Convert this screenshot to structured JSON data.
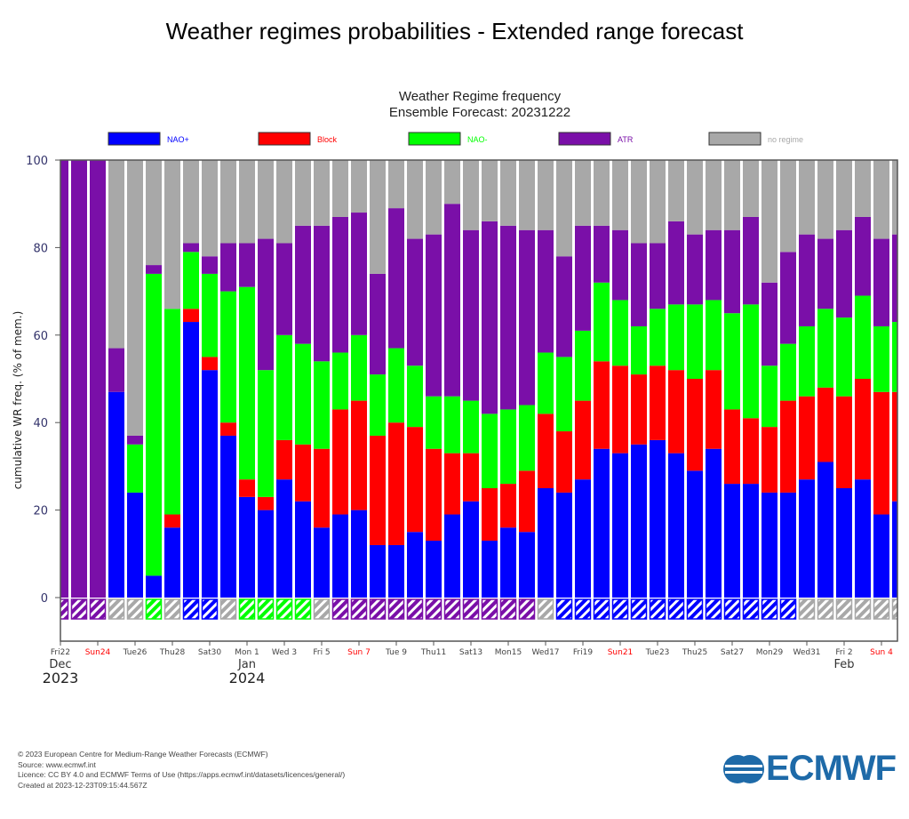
{
  "page_title": "Weather regimes probabilities - Extended range forecast",
  "footer": {
    "lines": [
      "© 2023 European Centre for Medium-Range Weather Forecasts (ECMWF)",
      "Source: www.ecmwf.int",
      "Licence: CC BY 4.0 and ECMWF Terms of Use (https://apps.ecmwf.int/datasets/licences/general/)",
      "Created at 2023-12-23T09:15:44.567Z"
    ],
    "logo_text": "ECMWF"
  },
  "chart_data": {
    "type": "bar",
    "stacked": true,
    "title": "Weather Regime frequency",
    "subtitle": "Ensemble Forecast: 20231222",
    "ylabel": "cumulative WR freq. (% of mem.)",
    "xlabel": "",
    "ylim": [
      -10,
      100
    ],
    "yticks": [
      0,
      20,
      40,
      60,
      80,
      100
    ],
    "grid": false,
    "legend_position": "top",
    "categories": [
      "2023-12-22",
      "2023-12-23",
      "2023-12-24",
      "2023-12-25",
      "2023-12-26",
      "2023-12-27",
      "2023-12-28",
      "2023-12-29",
      "2023-12-30",
      "2023-12-31",
      "2024-01-01",
      "2024-01-02",
      "2024-01-03",
      "2024-01-04",
      "2024-01-05",
      "2024-01-06",
      "2024-01-07",
      "2024-01-08",
      "2024-01-09",
      "2024-01-10",
      "2024-01-11",
      "2024-01-12",
      "2024-01-13",
      "2024-01-14",
      "2024-01-15",
      "2024-01-16",
      "2024-01-17",
      "2024-01-18",
      "2024-01-19",
      "2024-01-20",
      "2024-01-21",
      "2024-01-22",
      "2024-01-23",
      "2024-01-24",
      "2024-01-25",
      "2024-01-26",
      "2024-01-27",
      "2024-01-28",
      "2024-01-29",
      "2024-01-30",
      "2024-01-31",
      "2024-02-01",
      "2024-02-02",
      "2024-02-03",
      "2024-02-04",
      "2024-02-05"
    ],
    "series": [
      {
        "name": "NAO+",
        "color": "#0000ff",
        "values": [
          0,
          0,
          0,
          47,
          24,
          5,
          16,
          63,
          52,
          37,
          23,
          20,
          27,
          22,
          16,
          19,
          20,
          12,
          12,
          15,
          13,
          19,
          22,
          13,
          16,
          15,
          25,
          24,
          27,
          34,
          33,
          35,
          36,
          33,
          29,
          34,
          26,
          26,
          24,
          24,
          27,
          31,
          25,
          27,
          19,
          22
        ]
      },
      {
        "name": "Block",
        "color": "#ff0000",
        "values": [
          0,
          0,
          0,
          0,
          0,
          0,
          3,
          3,
          3,
          3,
          4,
          3,
          9,
          13,
          18,
          24,
          25,
          25,
          28,
          24,
          21,
          14,
          11,
          12,
          10,
          14,
          17,
          14,
          18,
          20,
          20,
          16,
          17,
          19,
          21,
          18,
          17,
          15,
          15,
          21,
          19,
          17,
          21,
          23,
          28,
          25
        ]
      },
      {
        "name": "NAO-",
        "color": "#00ff00",
        "values": [
          0,
          0,
          0,
          0,
          11,
          69,
          47,
          13,
          19,
          30,
          44,
          29,
          24,
          23,
          20,
          13,
          15,
          14,
          17,
          14,
          12,
          13,
          12,
          17,
          17,
          15,
          14,
          17,
          16,
          18,
          15,
          11,
          13,
          15,
          17,
          16,
          22,
          26,
          14,
          13,
          16,
          18,
          18,
          19,
          15,
          16
        ]
      },
      {
        "name": "ATR",
        "color": "#7a0fa8",
        "values": [
          100,
          100,
          100,
          10,
          2,
          2,
          0,
          2,
          4,
          11,
          10,
          30,
          21,
          27,
          31,
          31,
          28,
          23,
          32,
          29,
          37,
          44,
          39,
          44,
          42,
          40,
          28,
          23,
          24,
          13,
          16,
          19,
          15,
          19,
          16,
          16,
          19,
          20,
          19,
          21,
          21,
          16,
          20,
          18,
          20,
          20
        ]
      },
      {
        "name": "no regime",
        "color": "#a8a8a8",
        "values": [
          0,
          0,
          0,
          43,
          63,
          24,
          34,
          19,
          22,
          19,
          19,
          18,
          19,
          15,
          15,
          13,
          12,
          26,
          11,
          18,
          17,
          10,
          16,
          14,
          15,
          16,
          16,
          22,
          15,
          15,
          16,
          19,
          19,
          14,
          17,
          16,
          16,
          13,
          28,
          21,
          17,
          18,
          16,
          13,
          18,
          17
        ]
      }
    ],
    "dominant_regime": [
      "ATR",
      "ATR",
      "ATR",
      "no regime",
      "no regime",
      "NAO-",
      "no regime",
      "NAO+",
      "NAO+",
      "no regime",
      "NAO-",
      "NAO-",
      "NAO-",
      "NAO-",
      "no regime",
      "ATR",
      "ATR",
      "ATR",
      "ATR",
      "ATR",
      "ATR",
      "ATR",
      "ATR",
      "ATR",
      "ATR",
      "ATR",
      "no regime",
      "NAO+",
      "NAO+",
      "NAO+",
      "NAO+",
      "NAO+",
      "NAO+",
      "NAO+",
      "NAO+",
      "NAO+",
      "NAO+",
      "NAO+",
      "NAO+",
      "NAO+",
      "no regime",
      "no regime",
      "no regime",
      "no regime",
      "no regime",
      "no regime"
    ],
    "xtick_labels": [
      {
        "label": "Fri22",
        "weekend": false,
        "month": "Dec",
        "year": "2023"
      },
      {
        "label": "Sun24",
        "weekend": true
      },
      {
        "label": "Tue26",
        "weekend": false
      },
      {
        "label": "Thu28",
        "weekend": false
      },
      {
        "label": "Sat30",
        "weekend": false
      },
      {
        "label": "Mon 1",
        "weekend": false,
        "month": "Jan",
        "year": "2024"
      },
      {
        "label": "Wed 3",
        "weekend": false
      },
      {
        "label": "Fri 5",
        "weekend": false
      },
      {
        "label": "Sun 7",
        "weekend": true
      },
      {
        "label": "Tue 9",
        "weekend": false
      },
      {
        "label": "Thu11",
        "weekend": false
      },
      {
        "label": "Sat13",
        "weekend": false
      },
      {
        "label": "Mon15",
        "weekend": false
      },
      {
        "label": "Wed17",
        "weekend": false
      },
      {
        "label": "Fri19",
        "weekend": false
      },
      {
        "label": "Sun21",
        "weekend": true
      },
      {
        "label": "Tue23",
        "weekend": false
      },
      {
        "label": "Thu25",
        "weekend": false
      },
      {
        "label": "Sat27",
        "weekend": false
      },
      {
        "label": "Mon29",
        "weekend": false
      },
      {
        "label": "Wed31",
        "weekend": false
      },
      {
        "label": "Fri 2",
        "weekend": false,
        "month": "Feb"
      },
      {
        "label": "Sun 4",
        "weekend": true
      }
    ],
    "weekend_label_color": "#ff0000"
  }
}
